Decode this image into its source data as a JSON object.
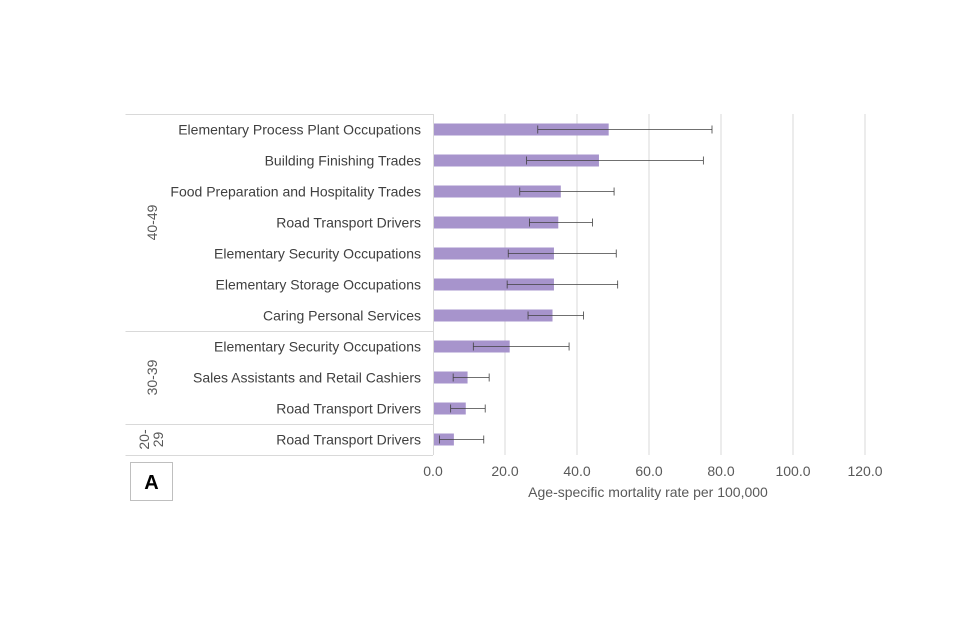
{
  "chart_data": {
    "type": "bar",
    "orientation": "horizontal",
    "xlabel": "Age-specific mortality rate per 100,000",
    "xlim": [
      0,
      120
    ],
    "x_ticks": [
      "0.0",
      "20.0",
      "40.0",
      "60.0",
      "80.0",
      "100.0",
      "120.0"
    ],
    "grid": true,
    "bar_color": "#a794cc",
    "panel_label": "A",
    "groups": [
      {
        "label": "40-49",
        "start": 0,
        "end": 6
      },
      {
        "label": "30-39",
        "start": 7,
        "end": 9
      },
      {
        "label": "20-29",
        "start": 10,
        "end": 10
      }
    ],
    "categories": [
      "Elementary Process Plant Occupations",
      "Building Finishing Trades",
      "Food Preparation and Hospitality Trades",
      "Road Transport Drivers",
      "Elementary Security Occupations",
      "Elementary Storage Occupations",
      "Caring Personal Services",
      "Elementary Security Occupations",
      "Sales Assistants and Retail Cashiers",
      "Road Transport Drivers",
      "Road Transport Drivers"
    ],
    "values": [
      48.8,
      46.1,
      35.5,
      34.8,
      33.6,
      33.6,
      33.2,
      21.3,
      9.6,
      9.1,
      5.8
    ],
    "ci_lower": [
      29.1,
      26.0,
      24.1,
      26.8,
      20.9,
      20.6,
      26.4,
      11.2,
      5.6,
      4.9,
      1.8
    ],
    "ci_upper": [
      77.5,
      75.1,
      50.3,
      44.3,
      50.9,
      51.3,
      41.8,
      37.8,
      15.6,
      14.5,
      14.1
    ]
  }
}
